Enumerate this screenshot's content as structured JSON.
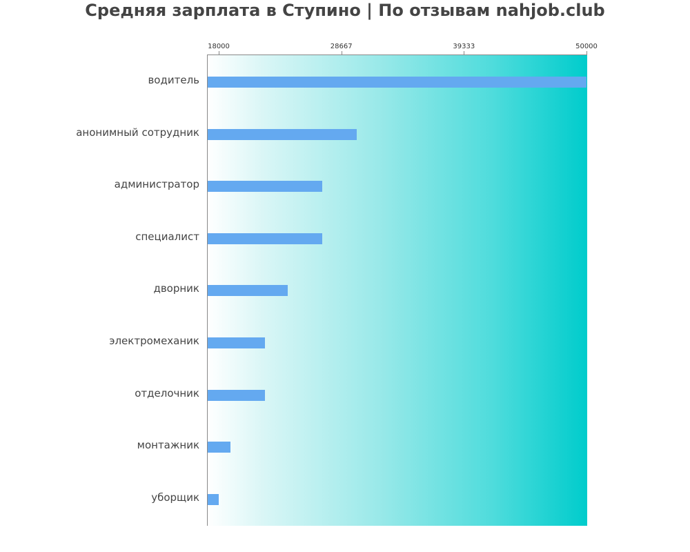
{
  "chart_data": {
    "type": "bar",
    "orientation": "horizontal",
    "title": "Средняя зарплата в Ступино | По отзывам nahjob.club",
    "xlabel": "",
    "ylabel": "",
    "xlim": [
      17000,
      50000
    ],
    "x_ticks": [
      18000,
      28667,
      39333,
      50000
    ],
    "x_tick_labels": [
      "18000",
      "28667",
      "39333",
      "50000"
    ],
    "grid": false,
    "legend": null,
    "categories": [
      "водитель",
      "анонимный сотрудник",
      "администратор",
      "специалист",
      "дворник",
      "электромеханик",
      "отделочник",
      "монтажник",
      "уборщик"
    ],
    "values": [
      50000,
      30000,
      27000,
      27000,
      24000,
      22000,
      22000,
      19000,
      18000
    ],
    "colors": {
      "bar": "#64a9f0",
      "background_gradient_start": "#ffffff",
      "background_gradient_end": "#00cccc"
    }
  },
  "title": "Средняя зарплата в Ступино | По отзывам nahjob.club"
}
